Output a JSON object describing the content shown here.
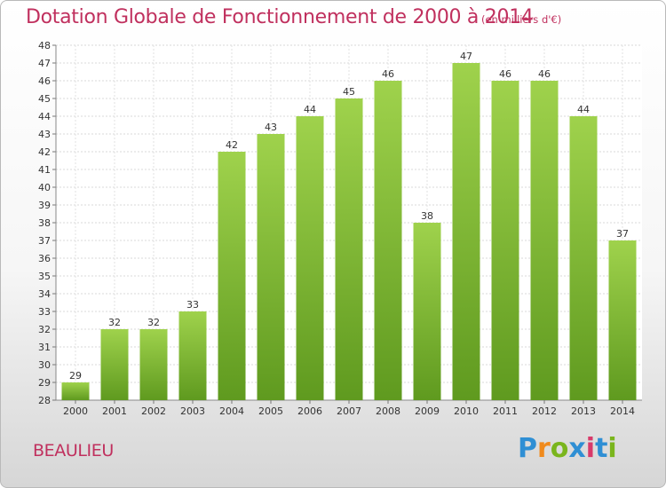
{
  "chart_data": {
    "type": "bar",
    "title": "Dotation Globale de Fonctionnement de 2000 à 2014",
    "unit_note": "(en milliers d'€)",
    "categories": [
      "2000",
      "2001",
      "2002",
      "2003",
      "2004",
      "2005",
      "2006",
      "2007",
      "2008",
      "2009",
      "2010",
      "2011",
      "2012",
      "2013",
      "2014"
    ],
    "values": [
      29,
      32,
      32,
      33,
      42,
      43,
      44,
      45,
      46,
      38,
      47,
      46,
      46,
      44,
      37
    ],
    "ylim": [
      28,
      48
    ],
    "yticks": [
      28,
      29,
      30,
      31,
      32,
      33,
      34,
      35,
      36,
      37,
      38,
      39,
      40,
      41,
      42,
      43,
      44,
      45,
      46,
      47,
      48
    ],
    "grid": true,
    "bar_color": "#7bb834",
    "bar_color_light": "#9fd24c",
    "bar_color_dark": "#5f9a1f",
    "title_color": "#c0305e"
  },
  "footer": {
    "city": "BEAULIEU",
    "logo_text": "Proxiti",
    "logo_colors": [
      "#2f8fd4",
      "#f08a1c",
      "#7ab51d",
      "#2f8fd4",
      "#d83a6a",
      "#2f8fd4",
      "#7ab51d"
    ]
  }
}
